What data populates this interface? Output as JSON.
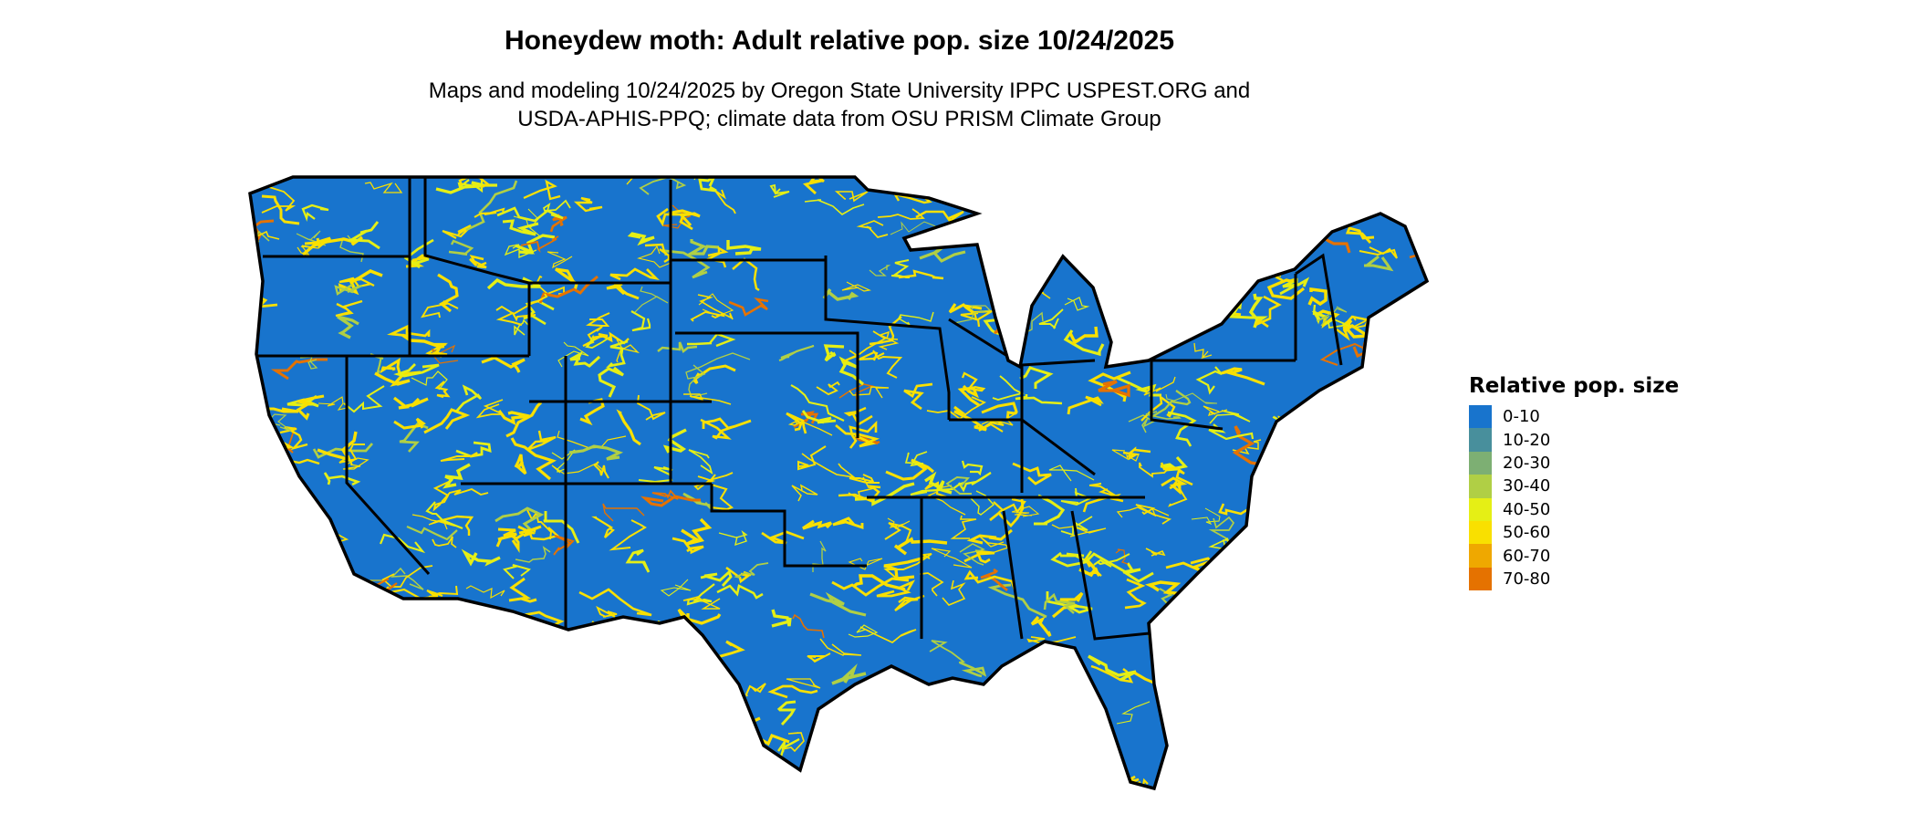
{
  "title": "Honeydew moth: Adult relative pop. size 10/24/2025",
  "subtitle_line1": "Maps and modeling 10/24/2025 by Oregon State University IPPC USPEST.ORG and",
  "subtitle_line2": "USDA-APHIS-PPQ; climate data from OSU PRISM Climate Group",
  "map": {
    "region": "Contiguous United States with state borders",
    "dominant_class": "0-10",
    "background_color": "#1874CD",
    "border_color": "#000000"
  },
  "legend": {
    "title": "Relative pop. size",
    "position": "right",
    "items": [
      {
        "label": "0-10",
        "color": "#1874CD"
      },
      {
        "label": "10-20",
        "color": "#488F9C"
      },
      {
        "label": "20-30",
        "color": "#7DAF73"
      },
      {
        "label": "30-40",
        "color": "#B0CF45"
      },
      {
        "label": "40-50",
        "color": "#E5EF15"
      },
      {
        "label": "50-60",
        "color": "#F9E000"
      },
      {
        "label": "60-70",
        "color": "#EFA800"
      },
      {
        "label": "70-80",
        "color": "#E57200"
      }
    ]
  }
}
